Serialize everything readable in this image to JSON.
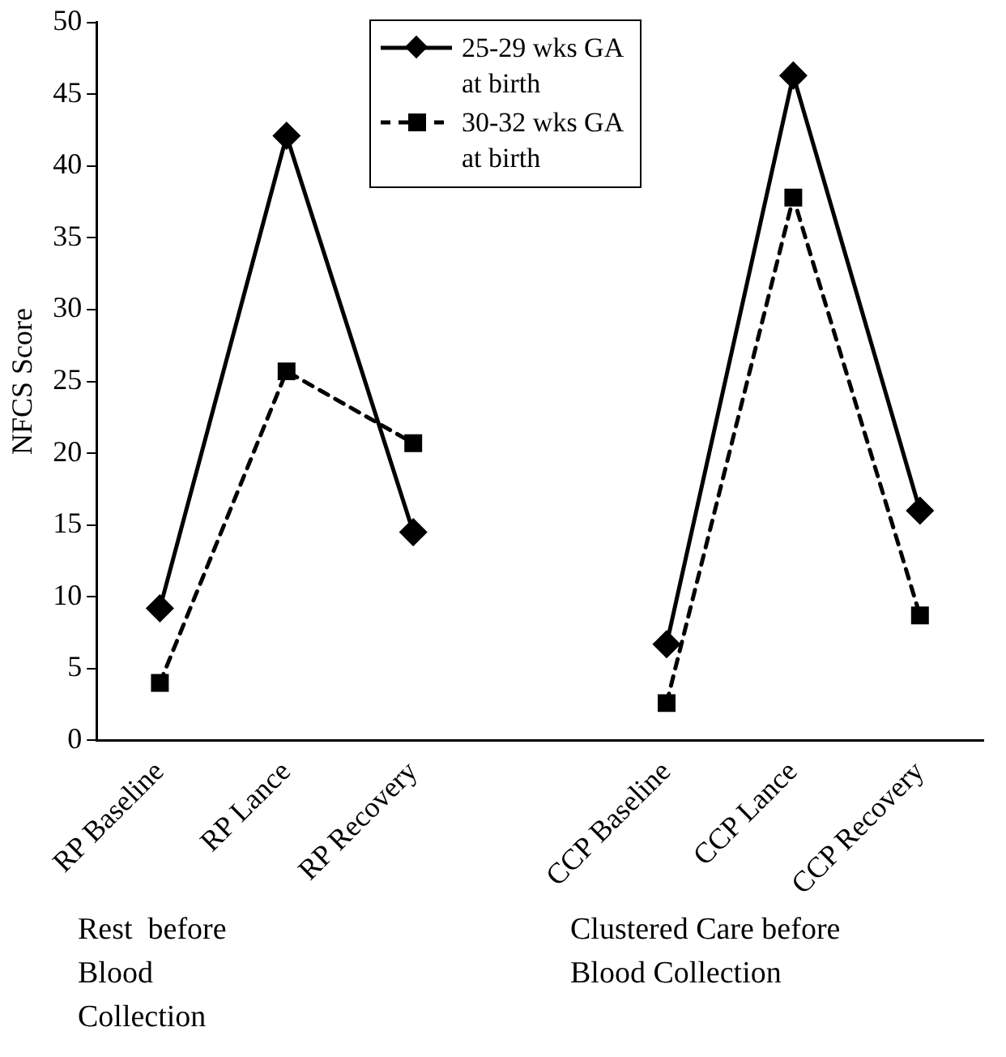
{
  "chart_data": {
    "type": "line",
    "ylabel": "NFCS Score",
    "categories": [
      "RP Baseline",
      "RP Lance",
      "RP Recovery",
      null,
      "CCP Baseline",
      "CCP Lance",
      "CCP Recovery"
    ],
    "series": [
      {
        "name": "25-29 wks GA at birth",
        "color": "#000000",
        "marker": "diamond",
        "line_style": "solid",
        "values": [
          9.2,
          42.1,
          14.5,
          null,
          6.7,
          46.3,
          16.0
        ]
      },
      {
        "name": "30-32 wks GA at birth",
        "color": "#000000",
        "marker": "square",
        "line_style": "dashed",
        "values": [
          4.0,
          25.7,
          20.7,
          null,
          2.6,
          37.8,
          8.7
        ]
      }
    ],
    "ylim": [
      0,
      50
    ],
    "yticks": [
      0,
      5,
      10,
      15,
      20,
      25,
      30,
      35,
      40,
      45,
      50
    ],
    "grid": false,
    "legend": "top",
    "annotations": [
      "Rest  before Blood Collection",
      "Clustered Care before Blood Collection"
    ]
  }
}
